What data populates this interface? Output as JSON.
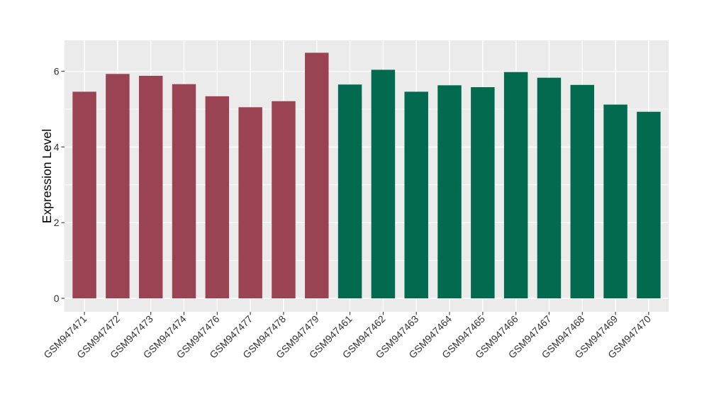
{
  "figure": {
    "background_color": "#FFFFFF"
  },
  "chart_data": {
    "type": "bar",
    "title": "",
    "ylabel": "Expression Level",
    "xlabel": "",
    "categories": [
      "GSM947471",
      "GSM947472",
      "GSM947473",
      "GSM947474",
      "GSM947476",
      "GSM947477",
      "GSM947478",
      "GSM947479",
      "GSM947461",
      "GSM947462",
      "GSM947463",
      "GSM947464",
      "GSM947465",
      "GSM947466",
      "GSM947467",
      "GSM947468",
      "GSM947469",
      "GSM947470"
    ],
    "values": [
      5.46,
      5.93,
      5.88,
      5.66,
      5.34,
      5.05,
      5.21,
      6.49,
      5.65,
      6.04,
      5.46,
      5.63,
      5.58,
      5.98,
      5.83,
      5.64,
      5.12,
      4.93
    ],
    "bar_group_index": [
      0,
      0,
      0,
      0,
      0,
      0,
      0,
      0,
      1,
      1,
      1,
      1,
      1,
      1,
      1,
      1,
      1,
      1
    ],
    "group_colors": [
      "#9A4453",
      "#026A4E"
    ],
    "yticks": [
      0,
      2,
      4,
      6
    ],
    "minor_gridlines": [
      1,
      3,
      5
    ],
    "ylim": [
      -0.34,
      6.81
    ],
    "legend": "none",
    "grid": "on",
    "style": {
      "panel_background": "#EBEBEB",
      "gridline_color": "#FFFFFF",
      "tick_color": "#333333",
      "axis_text_color": "#333333",
      "axis_title_color": "#000000"
    }
  }
}
